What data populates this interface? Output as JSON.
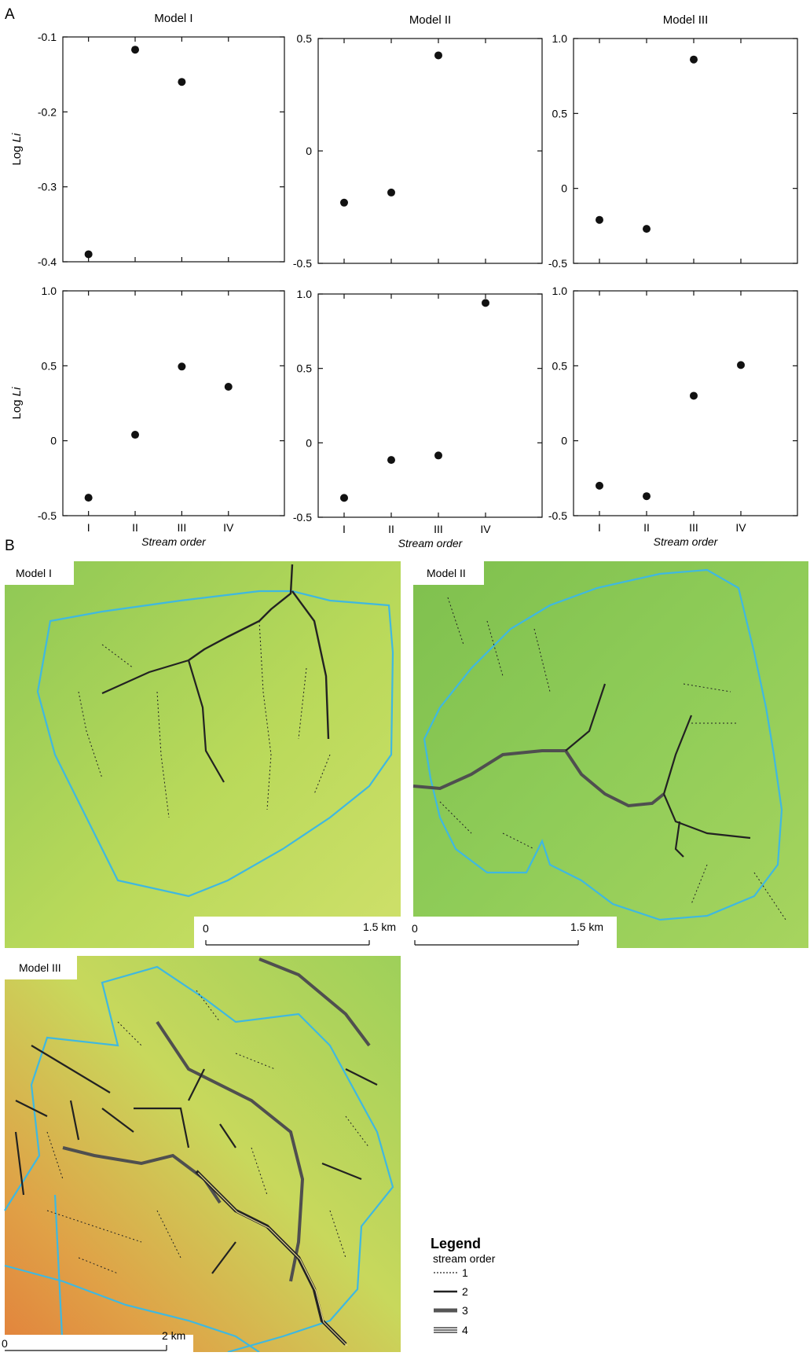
{
  "panel_a_label": "A",
  "panel_b_label": "B",
  "chart_data": [
    {
      "type": "scatter",
      "title": "Model I",
      "ylabel": "Log Li",
      "xlabel": "",
      "categories": [
        "I",
        "II",
        "III",
        "IV"
      ],
      "ylim": [
        -0.4,
        -0.1
      ],
      "yticks": [
        "-0.1",
        "-0.2",
        "-0.3",
        "-0.4"
      ],
      "show_xticks": false,
      "points": [
        {
          "x": 1,
          "y": -0.39
        },
        {
          "x": 2,
          "y": -0.117
        },
        {
          "x": 3,
          "y": -0.16
        }
      ]
    },
    {
      "type": "scatter",
      "title": "Model II",
      "ylabel": "",
      "xlabel": "",
      "categories": [
        "I",
        "II",
        "III",
        "IV"
      ],
      "ylim": [
        -0.5,
        0.5
      ],
      "yticks": [
        "0.5",
        "0",
        "-0.5"
      ],
      "show_xticks": false,
      "points": [
        {
          "x": 1,
          "y": -0.23
        },
        {
          "x": 2,
          "y": -0.185
        },
        {
          "x": 3,
          "y": 0.425
        }
      ]
    },
    {
      "type": "scatter",
      "title": "Model III",
      "ylabel": "",
      "xlabel": "",
      "categories": [
        "I",
        "II",
        "III",
        "IV"
      ],
      "ylim": [
        -0.5,
        1.0
      ],
      "yticks": [
        "1.0",
        "0.5",
        "0",
        "-0.5"
      ],
      "show_xticks": false,
      "points": [
        {
          "x": 1,
          "y": -0.21
        },
        {
          "x": 2,
          "y": -0.27
        },
        {
          "x": 3,
          "y": 0.86
        }
      ]
    },
    {
      "type": "scatter",
      "title": "",
      "ylabel": "Log Li",
      "xlabel": "Stream order",
      "categories": [
        "I",
        "II",
        "III",
        "IV"
      ],
      "ylim": [
        -0.5,
        1.0
      ],
      "yticks": [
        "1.0",
        "0.5",
        "0",
        "-0.5"
      ],
      "show_xticks": true,
      "points": [
        {
          "x": 1,
          "y": -0.38
        },
        {
          "x": 2,
          "y": 0.04
        },
        {
          "x": 3,
          "y": 0.495
        },
        {
          "x": 4,
          "y": 0.36
        }
      ]
    },
    {
      "type": "scatter",
      "title": "",
      "ylabel": "",
      "xlabel": "Stream order",
      "categories": [
        "I",
        "II",
        "III",
        "IV"
      ],
      "ylim": [
        -0.5,
        1.0
      ],
      "yticks": [
        "1.0",
        "0.5",
        "0",
        "-0.5"
      ],
      "show_xticks": true,
      "points": [
        {
          "x": 1,
          "y": -0.37
        },
        {
          "x": 2,
          "y": -0.115
        },
        {
          "x": 3,
          "y": -0.085
        },
        {
          "x": 4,
          "y": 0.94
        }
      ]
    },
    {
      "type": "scatter",
      "title": "",
      "ylabel": "",
      "xlabel": "Stream order",
      "categories": [
        "I",
        "II",
        "III",
        "IV"
      ],
      "ylim": [
        -0.5,
        1.0
      ],
      "yticks": [
        "1.0",
        "0.5",
        "0",
        "-0.5"
      ],
      "show_xticks": true,
      "points": [
        {
          "x": 1,
          "y": -0.3
        },
        {
          "x": 2,
          "y": -0.37
        },
        {
          "x": 3,
          "y": 0.3
        },
        {
          "x": 4,
          "y": 0.505
        }
      ]
    }
  ],
  "maps": {
    "model1": {
      "label": "Model I",
      "scale_start": "0",
      "scale_end": "1.5 km"
    },
    "model2": {
      "label": "Model II",
      "scale_start": "0",
      "scale_end": "1.5 km"
    },
    "model3": {
      "label": "Model III",
      "scale_start": "0",
      "scale_end": "2 km"
    }
  },
  "legend": {
    "title": "Legend",
    "subtitle": "stream order",
    "items": [
      "1",
      "2",
      "3",
      "4"
    ]
  },
  "colors": {
    "boundary": "#3fb8e0",
    "stream_dark": "#222222",
    "stream_gray": "#555555"
  }
}
